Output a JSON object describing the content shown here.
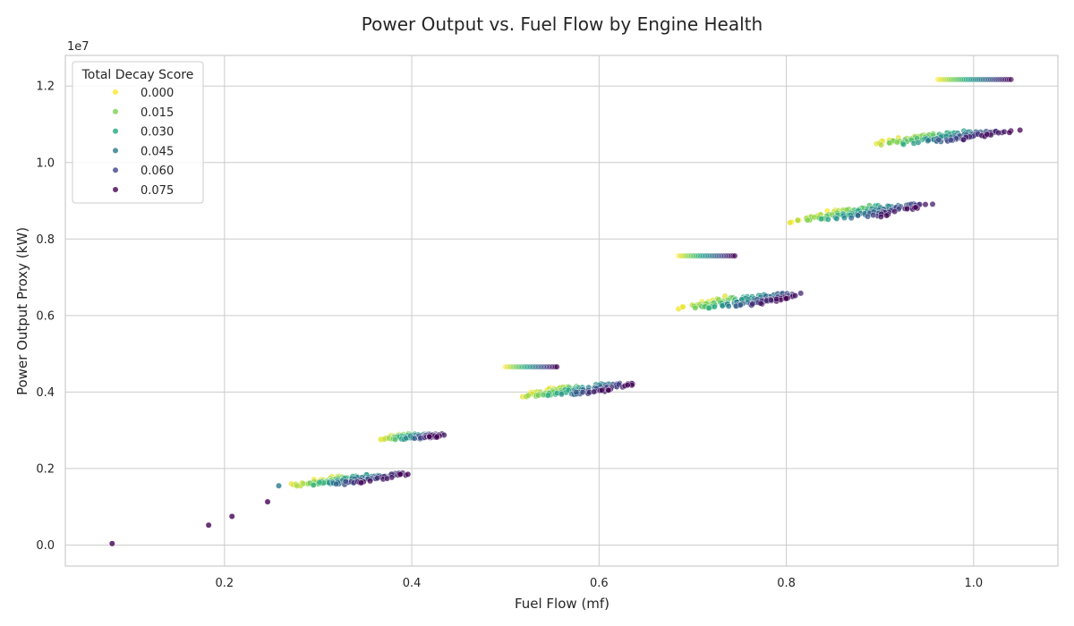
{
  "chart_data": {
    "type": "scatter",
    "title": "Power Output vs. Fuel Flow by Engine Health",
    "xlabel": "Fuel Flow (mf)",
    "ylabel": "Power Output Proxy (kW)",
    "y_offset_label": "1e7",
    "xlim": [
      0.03,
      1.09
    ],
    "ylim": [
      -0.055,
      1.28
    ],
    "x_ticks": [
      0.2,
      0.4,
      0.6,
      0.8,
      1.0
    ],
    "x_tick_labels": [
      "0.2",
      "0.4",
      "0.6",
      "0.8",
      "1.0"
    ],
    "y_ticks": [
      0.0,
      0.2,
      0.4,
      0.6,
      0.8,
      1.0,
      1.2
    ],
    "y_tick_labels": [
      "0.0",
      "0.2",
      "0.4",
      "0.6",
      "0.8",
      "1.0",
      "1.2"
    ],
    "y_unit_multiplier": 10000000,
    "grid": true,
    "legend": {
      "title": "Total Decay Score",
      "placement": "top-left",
      "entries": [
        {
          "label": "0.000",
          "color": "#fde725"
        },
        {
          "label": "0.015",
          "color": "#7ad151"
        },
        {
          "label": "0.030",
          "color": "#22a884"
        },
        {
          "label": "0.045",
          "color": "#2a788e"
        },
        {
          "label": "0.060",
          "color": "#414487"
        },
        {
          "label": "0.075",
          "color": "#440154"
        }
      ]
    },
    "colormap": [
      "#fde725",
      "#7ad151",
      "#22a884",
      "#2a788e",
      "#414487",
      "#440154"
    ],
    "decay_range": [
      0.0,
      0.075
    ],
    "clusters": [
      {
        "x_start": 0.265,
        "x_end": 0.32,
        "y_start": 0.158,
        "y_end": 0.183,
        "x_spread": 0.08,
        "y_spread": 0.02
      },
      {
        "x_start": 0.365,
        "x_end": 0.385,
        "y_start": 0.28,
        "y_end": 0.288,
        "x_spread": 0.055,
        "y_spread": 0.008
      },
      {
        "x_start": 0.51,
        "x_end": 0.56,
        "y_start": 0.392,
        "y_end": 0.42,
        "x_spread": 0.09,
        "y_spread": 0.025
      },
      {
        "x_start": 0.68,
        "x_end": 0.73,
        "y_start": 0.622,
        "y_end": 0.653,
        "x_spread": 0.095,
        "y_spread": 0.03
      },
      {
        "x_start": 0.8,
        "x_end": 0.86,
        "y_start": 0.852,
        "y_end": 0.887,
        "x_spread": 0.105,
        "y_spread": 0.035
      },
      {
        "x_start": 0.885,
        "x_end": 0.945,
        "y_start": 1.052,
        "y_end": 1.08,
        "x_spread": 0.105,
        "y_spread": 0.03
      }
    ],
    "lines": [
      {
        "x_start": 0.5,
        "x_end": 0.555,
        "y": 0.466
      },
      {
        "x_start": 0.685,
        "x_end": 0.745,
        "y": 0.756
      },
      {
        "x_start": 0.962,
        "x_end": 1.04,
        "y": 1.217
      }
    ],
    "outliers": [
      {
        "x": 0.08,
        "y": 0.004,
        "decay": 0.075
      },
      {
        "x": 0.183,
        "y": 0.052,
        "decay": 0.075
      },
      {
        "x": 0.208,
        "y": 0.075,
        "decay": 0.075
      },
      {
        "x": 0.246,
        "y": 0.113,
        "decay": 0.075
      },
      {
        "x": 0.258,
        "y": 0.155,
        "decay": 0.045
      }
    ]
  }
}
